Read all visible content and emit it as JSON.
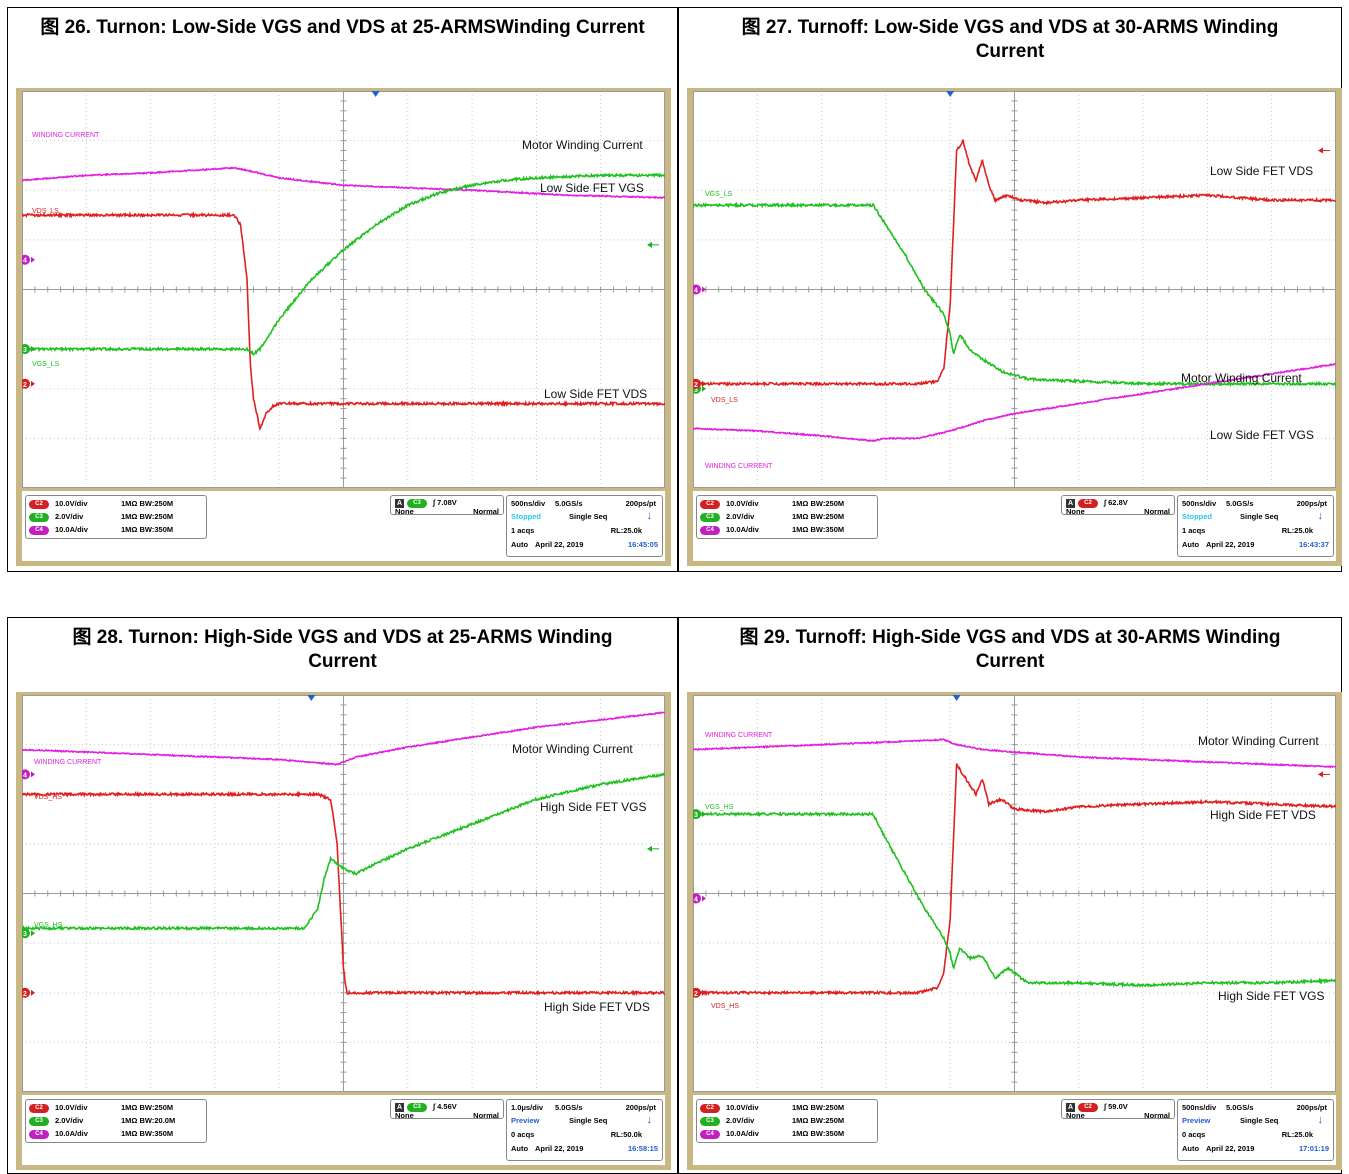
{
  "panels": [
    {
      "title": "图 26. Turnon: Low-Side VGS and VDS at 25-ARMSWinding Current",
      "trace_labels": {
        "winding": "WINDING CURRENT",
        "vds": "VDS_LS",
        "vgs": "VGS_LS"
      },
      "annotations": [
        "Motor Winding Current",
        "Low Side FET VGS",
        "Low Side FET VDS"
      ],
      "channels": [
        {
          "ch": "C2",
          "scale": "10.0V/div",
          "coupling": "1MΩ BW:250M",
          "color": "#d42020"
        },
        {
          "ch": "C3",
          "scale": "2.0V/div",
          "coupling": "1MΩ BW:250M",
          "color": "#20b020"
        },
        {
          "ch": "C4",
          "scale": "10.0A/div",
          "coupling": "1MΩ BW:350M",
          "color": "#c020c0"
        }
      ],
      "trigger": {
        "source": "C3",
        "level": "7.08V",
        "coupling": "None",
        "mode": "Normal"
      },
      "acquisition": {
        "timebase": "500ns/div",
        "samplerate": "5.0GS/s",
        "resolution": "200ps/pt",
        "state": "Stopped",
        "seq": "Single Seq",
        "acqs": "1 acqs",
        "record": "RL:25.0k",
        "auto": "Auto",
        "date": "April 22, 2019",
        "time": "16:45:05"
      }
    },
    {
      "title": "图 27. Turnoff: Low-Side VGS and VDS at 30-ARMS Winding Current",
      "trace_labels": {
        "winding": "WINDING CURRENT",
        "vds": "VDS_LS",
        "vgs": "VGS_LS"
      },
      "annotations": [
        "Low Side FET VDS",
        "Motor Winding Current",
        "Low Side FET VGS"
      ],
      "channels": [
        {
          "ch": "C2",
          "scale": "10.0V/div",
          "coupling": "1MΩ BW:250M",
          "color": "#d42020"
        },
        {
          "ch": "C3",
          "scale": "2.0V/div",
          "coupling": "1MΩ BW:250M",
          "color": "#20b020"
        },
        {
          "ch": "C4",
          "scale": "10.0A/div",
          "coupling": "1MΩ BW:350M",
          "color": "#c020c0"
        }
      ],
      "trigger": {
        "source": "C2",
        "level": "62.8V",
        "coupling": "None",
        "mode": "Normal"
      },
      "acquisition": {
        "timebase": "500ns/div",
        "samplerate": "5.0GS/s",
        "resolution": "200ps/pt",
        "state": "Stopped",
        "seq": "Single Seq",
        "acqs": "1 acqs",
        "record": "RL:25.0k",
        "auto": "Auto",
        "date": "April 22, 2019",
        "time": "16:43:37"
      }
    },
    {
      "title": "图 28. Turnon: High-Side VGS and VDS at 25-ARMS Winding Current",
      "trace_labels": {
        "winding": "WINDING CURRENT",
        "vds": "VDS_HS",
        "vgs": "VGS_HS"
      },
      "annotations": [
        "Motor Winding Current",
        "High Side FET VGS",
        "High Side FET VDS"
      ],
      "channels": [
        {
          "ch": "C2",
          "scale": "10.0V/div",
          "coupling": "1MΩ BW:250M",
          "color": "#d42020"
        },
        {
          "ch": "C3",
          "scale": "2.0V/div",
          "coupling": "1MΩ BW:20.0M",
          "color": "#20b020"
        },
        {
          "ch": "C4",
          "scale": "10.0A/div",
          "coupling": "1MΩ BW:350M",
          "color": "#c020c0"
        }
      ],
      "trigger": {
        "source": "C3",
        "level": "4.56V",
        "coupling": "None",
        "mode": "Normal"
      },
      "acquisition": {
        "timebase": "1.0μs/div",
        "samplerate": "5.0GS/s",
        "resolution": "200ps/pt",
        "state": "Preview",
        "seq": "Single Seq",
        "acqs": "0 acqs",
        "record": "RL:50.0k",
        "auto": "Auto",
        "date": "April 22, 2019",
        "time": "16:58:15"
      }
    },
    {
      "title": "图 29. Turnoff: High-Side VGS and VDS at 30-ARMS Winding Current",
      "trace_labels": {
        "winding": "WINDING CURRENT",
        "vds": "VDS_HS",
        "vgs": "VGS_HS"
      },
      "annotations": [
        "Motor Winding Current",
        "High Side FET VDS",
        "High Side FET VGS"
      ],
      "channels": [
        {
          "ch": "C2",
          "scale": "10.0V/div",
          "coupling": "1MΩ BW:250M",
          "color": "#d42020"
        },
        {
          "ch": "C3",
          "scale": "2.0V/div",
          "coupling": "1MΩ BW:250M",
          "color": "#20b020"
        },
        {
          "ch": "C4",
          "scale": "10.0A/div",
          "coupling": "1MΩ BW:350M",
          "color": "#c020c0"
        }
      ],
      "trigger": {
        "source": "C2",
        "level": "59.0V",
        "coupling": "None",
        "mode": "Normal"
      },
      "acquisition": {
        "timebase": "500ns/div",
        "samplerate": "5.0GS/s",
        "resolution": "200ps/pt",
        "state": "Preview",
        "seq": "Single Seq",
        "acqs": "0 acqs",
        "record": "RL:25.0k",
        "auto": "Auto",
        "date": "April 22, 2019",
        "time": "17:01:19"
      }
    }
  ],
  "chart_data": [
    {
      "type": "line",
      "x_unit": "div",
      "y_unit": "div",
      "xlim": [
        0,
        10
      ],
      "ylim": [
        -4,
        4
      ],
      "series": [
        {
          "key": "winding",
          "color": "#e020e0",
          "x": [
            0,
            1,
            2,
            3.3,
            3.5,
            4,
            5,
            7,
            8.5,
            10
          ],
          "y": [
            2.2,
            2.3,
            2.35,
            2.45,
            2.4,
            2.25,
            2.1,
            2.0,
            1.9,
            1.85
          ]
        },
        {
          "key": "vds",
          "color": "#e02020",
          "x": [
            0,
            1,
            2,
            3,
            3.3,
            3.4,
            3.5,
            3.55,
            3.6,
            3.7,
            3.8,
            3.9,
            4,
            4.3,
            5,
            7,
            8,
            10
          ],
          "y": [
            1.5,
            1.5,
            1.5,
            1.5,
            1.5,
            1.3,
            0.2,
            -1.5,
            -2.2,
            -2.8,
            -2.5,
            -2.35,
            -2.3,
            -2.3,
            -2.3,
            -2.3,
            -2.3,
            -2.3
          ]
        },
        {
          "key": "vgs",
          "color": "#20c020",
          "x": [
            0,
            1,
            2,
            3,
            3.5,
            3.6,
            3.7,
            3.8,
            4,
            4.5,
            5,
            5.5,
            6,
            6.5,
            7,
            7.5,
            8,
            9,
            10
          ],
          "y": [
            -1.2,
            -1.2,
            -1.2,
            -1.2,
            -1.2,
            -1.3,
            -1.2,
            -1.0,
            -0.6,
            0.2,
            0.8,
            1.3,
            1.7,
            1.95,
            2.1,
            2.2,
            2.25,
            2.3,
            2.3
          ]
        }
      ],
      "markers": {
        "ch4": 0.6,
        "ch3": -1.2,
        "ch2": -1.9,
        "arrow": 0.9,
        "trigger_x": 5.5
      }
    },
    {
      "type": "line",
      "x_unit": "div",
      "y_unit": "div",
      "xlim": [
        0,
        10
      ],
      "ylim": [
        -4,
        4
      ],
      "series": [
        {
          "key": "vds",
          "color": "#e02020",
          "x": [
            0,
            1,
            2,
            3,
            3.5,
            3.8,
            3.9,
            4.0,
            4.1,
            4.2,
            4.3,
            4.4,
            4.5,
            4.6,
            4.7,
            4.9,
            5.1,
            5.5,
            6,
            7,
            8,
            9,
            10
          ],
          "y": [
            -1.9,
            -1.9,
            -1.9,
            -1.9,
            -1.9,
            -1.85,
            -1.6,
            -0.3,
            2.8,
            3.0,
            2.5,
            2.2,
            2.6,
            2.1,
            1.8,
            1.9,
            1.8,
            1.75,
            1.8,
            1.85,
            1.9,
            1.8,
            1.8
          ]
        },
        {
          "key": "vgs",
          "color": "#20c020",
          "x": [
            0,
            1,
            2,
            2.8,
            3,
            3.3,
            3.6,
            3.9,
            4.0,
            4.05,
            4.15,
            4.3,
            4.5,
            4.8,
            5.2,
            6,
            7,
            8,
            9,
            10
          ],
          "y": [
            1.7,
            1.7,
            1.7,
            1.7,
            1.3,
            0.7,
            0.0,
            -0.5,
            -0.9,
            -1.3,
            -0.9,
            -1.2,
            -1.4,
            -1.65,
            -1.8,
            -1.85,
            -1.9,
            -1.9,
            -1.9,
            -1.9
          ]
        },
        {
          "key": "winding",
          "color": "#e020e0",
          "x": [
            0,
            1,
            2,
            2.8,
            3,
            3.5,
            4,
            4.5,
            5,
            6,
            7,
            8,
            9,
            10
          ],
          "y": [
            -2.8,
            -2.85,
            -2.95,
            -3.05,
            -3.0,
            -3.0,
            -2.85,
            -2.65,
            -2.5,
            -2.3,
            -2.1,
            -1.9,
            -1.7,
            -1.5
          ]
        }
      ],
      "markers": {
        "ch4": 0.0,
        "ch3": -2.0,
        "ch2": -1.9,
        "arrow": 2.8,
        "trigger_x": 4.0
      }
    },
    {
      "type": "line",
      "x_unit": "div",
      "y_unit": "div",
      "xlim": [
        0,
        10
      ],
      "ylim": [
        -4,
        4
      ],
      "series": [
        {
          "key": "winding",
          "color": "#e020e0",
          "x": [
            0,
            1,
            2,
            3,
            4,
            4.9,
            5.0,
            5.2,
            6,
            7,
            8,
            9,
            10
          ],
          "y": [
            2.9,
            2.85,
            2.8,
            2.75,
            2.7,
            2.6,
            2.65,
            2.75,
            2.95,
            3.15,
            3.35,
            3.5,
            3.65
          ]
        },
        {
          "key": "vds",
          "color": "#e02020",
          "x": [
            0,
            1,
            2,
            3,
            4,
            4.6,
            4.8,
            4.9,
            5.0,
            5.05,
            5.2,
            5.4,
            6,
            7,
            8,
            9,
            10
          ],
          "y": [
            2.0,
            2.0,
            2.0,
            2.0,
            2.0,
            2.0,
            1.9,
            1.0,
            -1.5,
            -2.0,
            -2.0,
            -2.0,
            -2.0,
            -2.0,
            -2.0,
            -2.0,
            -2.0
          ]
        },
        {
          "key": "vgs",
          "color": "#20c020",
          "x": [
            0,
            1,
            2,
            3,
            4,
            4.4,
            4.6,
            4.7,
            4.8,
            4.9,
            5.0,
            5.2,
            5.5,
            6,
            7,
            8,
            9,
            10
          ],
          "y": [
            -0.7,
            -0.7,
            -0.7,
            -0.7,
            -0.7,
            -0.7,
            -0.3,
            0.3,
            0.7,
            0.6,
            0.5,
            0.4,
            0.6,
            0.9,
            1.4,
            1.9,
            2.2,
            2.4
          ]
        }
      ],
      "markers": {
        "ch4": 2.4,
        "ch3": -0.8,
        "ch2": -2.0,
        "arrow": 0.9,
        "trigger_x": 4.5
      }
    },
    {
      "type": "line",
      "x_unit": "div",
      "y_unit": "div",
      "xlim": [
        0,
        10
      ],
      "ylim": [
        -4,
        4
      ],
      "series": [
        {
          "key": "winding",
          "color": "#e020e0",
          "x": [
            0,
            1,
            2,
            3,
            3.9,
            4.1,
            4.5,
            5,
            6,
            7,
            8,
            9,
            10
          ],
          "y": [
            2.9,
            2.95,
            3.0,
            3.05,
            3.1,
            3.0,
            2.9,
            2.85,
            2.75,
            2.7,
            2.65,
            2.6,
            2.55
          ]
        },
        {
          "key": "vds",
          "color": "#e02020",
          "x": [
            0,
            1,
            2,
            3,
            3.5,
            3.8,
            3.9,
            4.0,
            4.1,
            4.2,
            4.3,
            4.4,
            4.5,
            4.6,
            4.8,
            5.0,
            5.5,
            6,
            7,
            8,
            9,
            10
          ],
          "y": [
            -2.0,
            -2.0,
            -2.0,
            -2.0,
            -2.0,
            -1.9,
            -1.6,
            -0.5,
            2.6,
            2.4,
            2.2,
            2.0,
            2.3,
            1.8,
            1.9,
            1.7,
            1.65,
            1.75,
            1.8,
            1.85,
            1.8,
            1.75
          ]
        },
        {
          "key": "vgs",
          "color": "#20c020",
          "x": [
            0,
            1,
            2,
            2.8,
            3,
            3.3,
            3.6,
            3.9,
            4.0,
            4.05,
            4.15,
            4.3,
            4.5,
            4.7,
            4.9,
            5.2,
            6,
            7,
            8,
            9,
            10
          ],
          "y": [
            1.6,
            1.6,
            1.6,
            1.6,
            1.1,
            0.4,
            -0.3,
            -0.9,
            -1.2,
            -1.5,
            -1.1,
            -1.3,
            -1.25,
            -1.7,
            -1.5,
            -1.8,
            -1.8,
            -1.85,
            -1.8,
            -1.8,
            -1.75
          ]
        }
      ],
      "markers": {
        "ch4": -0.1,
        "ch3": 1.6,
        "ch2": -2.0,
        "arrow": 2.4,
        "trigger_x": 4.1
      }
    }
  ]
}
